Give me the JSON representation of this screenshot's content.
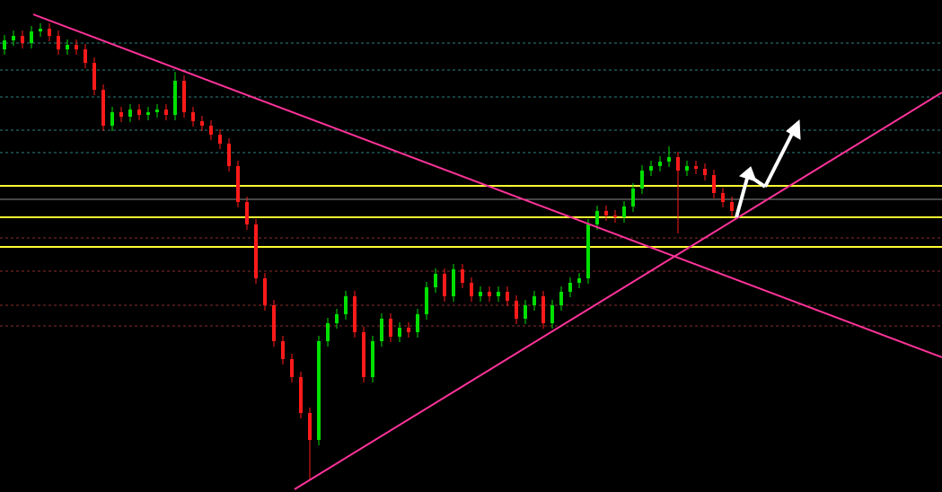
{
  "chart_data": {
    "type": "candlestick",
    "open": [
      493,
      503,
      508,
      500,
      513,
      516,
      508,
      493,
      498,
      493,
      478,
      448,
      408,
      423,
      418,
      426,
      420,
      423,
      426,
      420,
      458,
      423,
      413,
      408,
      398,
      388,
      363,
      323,
      298,
      238,
      208,
      168,
      148,
      128,
      88,
      58,
      168,
      188,
      198,
      218,
      178,
      128,
      168,
      193,
      173,
      183,
      178,
      198,
      228,
      243,
      218,
      248,
      233,
      218,
      223,
      218,
      223,
      213,
      193,
      208,
      218,
      188,
      208,
      223,
      233,
      238,
      298,
      313,
      308,
      306,
      318,
      338,
      358,
      363,
      368,
      373,
      358,
      363,
      360,
      353,
      333,
      323
    ],
    "high": [
      509,
      514,
      514,
      519,
      522,
      522,
      514,
      504,
      504,
      499,
      484,
      454,
      429,
      429,
      432,
      432,
      429,
      432,
      432,
      468,
      464,
      429,
      419,
      414,
      404,
      394,
      369,
      329,
      304,
      244,
      214,
      174,
      154,
      134,
      94,
      174,
      194,
      204,
      224,
      224,
      184,
      174,
      199,
      199,
      189,
      189,
      204,
      234,
      249,
      249,
      254,
      254,
      239,
      229,
      229,
      229,
      229,
      219,
      214,
      224,
      224,
      214,
      229,
      239,
      244,
      304,
      319,
      319,
      314,
      324,
      344,
      364,
      369,
      374,
      385,
      379,
      369,
      369,
      366,
      359,
      339,
      329
    ],
    "low": [
      487,
      497,
      494,
      494,
      507,
      502,
      487,
      487,
      487,
      472,
      442,
      402,
      402,
      412,
      412,
      414,
      414,
      417,
      414,
      414,
      417,
      407,
      402,
      392,
      382,
      357,
      317,
      292,
      232,
      202,
      162,
      142,
      122,
      82,
      13,
      52,
      162,
      182,
      192,
      172,
      122,
      122,
      162,
      167,
      167,
      172,
      172,
      192,
      222,
      212,
      212,
      227,
      212,
      212,
      212,
      212,
      207,
      187,
      187,
      202,
      182,
      182,
      202,
      217,
      227,
      232,
      292,
      302,
      300,
      300,
      312,
      332,
      352,
      357,
      362,
      288,
      352,
      354,
      347,
      327,
      317,
      307
    ],
    "close": [
      503,
      508,
      500,
      513,
      516,
      508,
      493,
      498,
      493,
      478,
      448,
      408,
      423,
      418,
      426,
      420,
      423,
      426,
      420,
      458,
      423,
      413,
      408,
      398,
      388,
      363,
      323,
      298,
      238,
      208,
      168,
      148,
      128,
      88,
      58,
      168,
      188,
      198,
      218,
      178,
      128,
      168,
      193,
      173,
      183,
      178,
      198,
      228,
      243,
      218,
      248,
      233,
      218,
      223,
      218,
      223,
      213,
      193,
      208,
      218,
      188,
      208,
      223,
      233,
      238,
      298,
      313,
      308,
      306,
      318,
      338,
      358,
      363,
      368,
      373,
      358,
      363,
      360,
      353,
      333,
      323,
      313
    ],
    "up_color": "#00e000",
    "down_color": "#ff1a1a",
    "ylim": [
      0,
      548
    ]
  }
}
